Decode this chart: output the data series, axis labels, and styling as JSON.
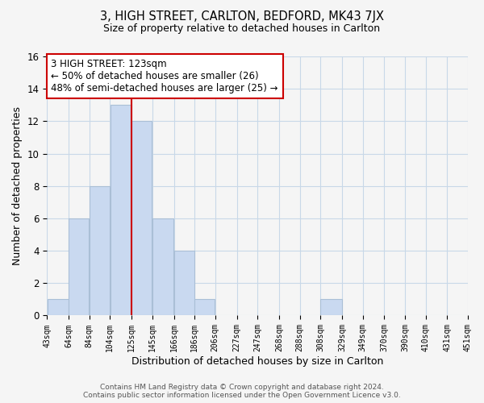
{
  "title": "3, HIGH STREET, CARLTON, BEDFORD, MK43 7JX",
  "subtitle": "Size of property relative to detached houses in Carlton",
  "xlabel": "Distribution of detached houses by size in Carlton",
  "ylabel": "Number of detached properties",
  "bin_edges": [
    43,
    64,
    84,
    104,
    125,
    145,
    166,
    186,
    206,
    227,
    247,
    268,
    288,
    308,
    329,
    349,
    370,
    390,
    410,
    431,
    451
  ],
  "bar_heights": [
    1,
    6,
    8,
    13,
    12,
    6,
    4,
    1,
    0,
    0,
    0,
    0,
    0,
    1,
    0,
    0,
    0,
    0,
    0,
    0
  ],
  "bar_color": "#c9d9f0",
  "bar_edgecolor": "#aabfd6",
  "vline_x": 125,
  "vline_color": "#cc0000",
  "ylim": [
    0,
    16
  ],
  "annotation_line1": "3 HIGH STREET: 123sqm",
  "annotation_line2": "← 50% of detached houses are smaller (26)",
  "annotation_line3": "48% of semi-detached houses are larger (25) →",
  "annotation_box_color": "#ffffff",
  "annotation_box_edgecolor": "#cc0000",
  "footer_line1": "Contains HM Land Registry data © Crown copyright and database right 2024.",
  "footer_line2": "Contains public sector information licensed under the Open Government Licence v3.0.",
  "bg_color": "#f5f5f5",
  "grid_color": "#c8d8e8",
  "tick_labels": [
    "43sqm",
    "64sqm",
    "84sqm",
    "104sqm",
    "125sqm",
    "145sqm",
    "166sqm",
    "186sqm",
    "206sqm",
    "227sqm",
    "247sqm",
    "268sqm",
    "288sqm",
    "308sqm",
    "329sqm",
    "349sqm",
    "370sqm",
    "390sqm",
    "410sqm",
    "431sqm",
    "451sqm"
  ]
}
